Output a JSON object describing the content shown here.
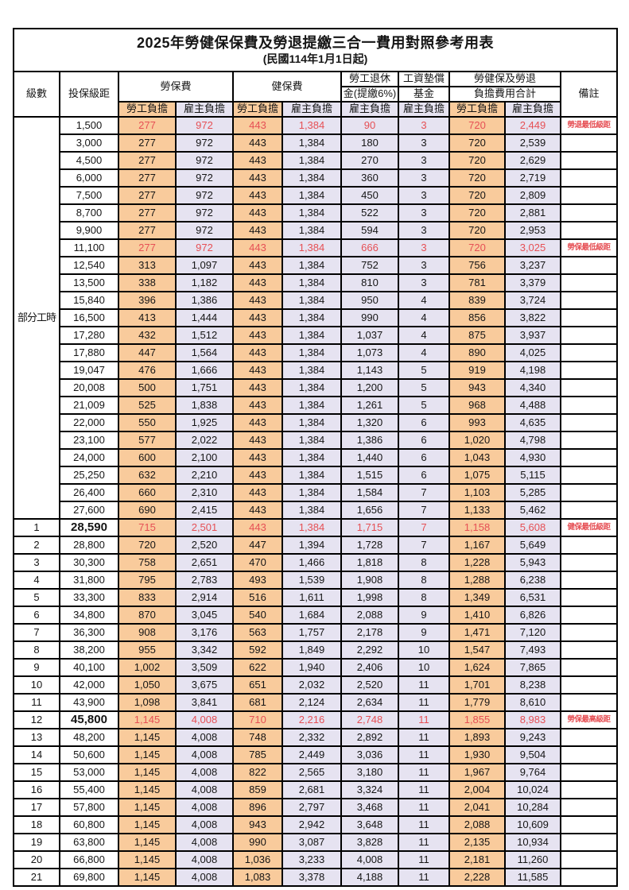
{
  "title": "2025年勞健保保費及勞退提繳三合一費用對照參考用表",
  "subtitle": "(民國114年1月1日起)",
  "columns": {
    "level": "級數",
    "bracket": "投保級距",
    "labor": "勞保費",
    "health": "健保費",
    "pension_line1": "勞工退休",
    "pension_line2": "金(提繳6%)",
    "wage_fund_line1": "工資墊償",
    "wage_fund_line2": "基金",
    "total_line1": "勞健保及勞退",
    "total_line2": "負擔費用合計",
    "employee": "勞工負擔",
    "employer": "雇主負擔",
    "note": "備註"
  },
  "colors": {
    "employee_bg": "#F9CB9C",
    "employer_bg": "#E6E3F1",
    "highlight_red": "#E65055",
    "border": "#000000"
  },
  "part_time_label": "部分工時",
  "part_time_span": 23,
  "rows": [
    {
      "level": "",
      "bracket": "1,500",
      "values": [
        "277",
        "972",
        "443",
        "1,384",
        "90",
        "3",
        "720",
        "2,449"
      ],
      "note": "勞退最低級距",
      "red": true,
      "bold": false
    },
    {
      "level": "",
      "bracket": "3,000",
      "values": [
        "277",
        "972",
        "443",
        "1,384",
        "180",
        "3",
        "720",
        "2,539"
      ],
      "note": "",
      "red": false,
      "bold": false
    },
    {
      "level": "",
      "bracket": "4,500",
      "values": [
        "277",
        "972",
        "443",
        "1,384",
        "270",
        "3",
        "720",
        "2,629"
      ],
      "note": "",
      "red": false,
      "bold": false
    },
    {
      "level": "",
      "bracket": "6,000",
      "values": [
        "277",
        "972",
        "443",
        "1,384",
        "360",
        "3",
        "720",
        "2,719"
      ],
      "note": "",
      "red": false,
      "bold": false
    },
    {
      "level": "",
      "bracket": "7,500",
      "values": [
        "277",
        "972",
        "443",
        "1,384",
        "450",
        "3",
        "720",
        "2,809"
      ],
      "note": "",
      "red": false,
      "bold": false
    },
    {
      "level": "",
      "bracket": "8,700",
      "values": [
        "277",
        "972",
        "443",
        "1,384",
        "522",
        "3",
        "720",
        "2,881"
      ],
      "note": "",
      "red": false,
      "bold": false
    },
    {
      "level": "",
      "bracket": "9,900",
      "values": [
        "277",
        "972",
        "443",
        "1,384",
        "594",
        "3",
        "720",
        "2,953"
      ],
      "note": "",
      "red": false,
      "bold": false
    },
    {
      "level": "",
      "bracket": "11,100",
      "values": [
        "277",
        "972",
        "443",
        "1,384",
        "666",
        "3",
        "720",
        "3,025"
      ],
      "note": "勞保最低級距",
      "red": true,
      "bold": false
    },
    {
      "level": "",
      "bracket": "12,540",
      "values": [
        "313",
        "1,097",
        "443",
        "1,384",
        "752",
        "3",
        "756",
        "3,237"
      ],
      "note": "",
      "red": false,
      "bold": false
    },
    {
      "level": "",
      "bracket": "13,500",
      "values": [
        "338",
        "1,182",
        "443",
        "1,384",
        "810",
        "3",
        "781",
        "3,379"
      ],
      "note": "",
      "red": false,
      "bold": false
    },
    {
      "level": "",
      "bracket": "15,840",
      "values": [
        "396",
        "1,386",
        "443",
        "1,384",
        "950",
        "4",
        "839",
        "3,724"
      ],
      "note": "",
      "red": false,
      "bold": false
    },
    {
      "level": "",
      "bracket": "16,500",
      "values": [
        "413",
        "1,444",
        "443",
        "1,384",
        "990",
        "4",
        "856",
        "3,822"
      ],
      "note": "",
      "red": false,
      "bold": false
    },
    {
      "level": "",
      "bracket": "17,280",
      "values": [
        "432",
        "1,512",
        "443",
        "1,384",
        "1,037",
        "4",
        "875",
        "3,937"
      ],
      "note": "",
      "red": false,
      "bold": false
    },
    {
      "level": "",
      "bracket": "17,880",
      "values": [
        "447",
        "1,564",
        "443",
        "1,384",
        "1,073",
        "4",
        "890",
        "4,025"
      ],
      "note": "",
      "red": false,
      "bold": false
    },
    {
      "level": "",
      "bracket": "19,047",
      "values": [
        "476",
        "1,666",
        "443",
        "1,384",
        "1,143",
        "5",
        "919",
        "4,198"
      ],
      "note": "",
      "red": false,
      "bold": false
    },
    {
      "level": "",
      "bracket": "20,008",
      "values": [
        "500",
        "1,751",
        "443",
        "1,384",
        "1,200",
        "5",
        "943",
        "4,340"
      ],
      "note": "",
      "red": false,
      "bold": false
    },
    {
      "level": "",
      "bracket": "21,009",
      "values": [
        "525",
        "1,838",
        "443",
        "1,384",
        "1,261",
        "5",
        "968",
        "4,488"
      ],
      "note": "",
      "red": false,
      "bold": false
    },
    {
      "level": "",
      "bracket": "22,000",
      "values": [
        "550",
        "1,925",
        "443",
        "1,384",
        "1,320",
        "6",
        "993",
        "4,635"
      ],
      "note": "",
      "red": false,
      "bold": false
    },
    {
      "level": "",
      "bracket": "23,100",
      "values": [
        "577",
        "2,022",
        "443",
        "1,384",
        "1,386",
        "6",
        "1,020",
        "4,798"
      ],
      "note": "",
      "red": false,
      "bold": false
    },
    {
      "level": "",
      "bracket": "24,000",
      "values": [
        "600",
        "2,100",
        "443",
        "1,384",
        "1,440",
        "6",
        "1,043",
        "4,930"
      ],
      "note": "",
      "red": false,
      "bold": false
    },
    {
      "level": "",
      "bracket": "25,250",
      "values": [
        "632",
        "2,210",
        "443",
        "1,384",
        "1,515",
        "6",
        "1,075",
        "5,115"
      ],
      "note": "",
      "red": false,
      "bold": false
    },
    {
      "level": "",
      "bracket": "26,400",
      "values": [
        "660",
        "2,310",
        "443",
        "1,384",
        "1,584",
        "7",
        "1,103",
        "5,285"
      ],
      "note": "",
      "red": false,
      "bold": false
    },
    {
      "level": "",
      "bracket": "27,600",
      "values": [
        "690",
        "2,415",
        "443",
        "1,384",
        "1,656",
        "7",
        "1,133",
        "5,462"
      ],
      "note": "",
      "red": false,
      "bold": false
    },
    {
      "level": "1",
      "bracket": "28,590",
      "values": [
        "715",
        "2,501",
        "443",
        "1,384",
        "1,715",
        "7",
        "1,158",
        "5,608"
      ],
      "note": "健保最低級距",
      "red": true,
      "bold": true
    },
    {
      "level": "2",
      "bracket": "28,800",
      "values": [
        "720",
        "2,520",
        "447",
        "1,394",
        "1,728",
        "7",
        "1,167",
        "5,649"
      ],
      "note": "",
      "red": false,
      "bold": false
    },
    {
      "level": "3",
      "bracket": "30,300",
      "values": [
        "758",
        "2,651",
        "470",
        "1,466",
        "1,818",
        "8",
        "1,228",
        "5,943"
      ],
      "note": "",
      "red": false,
      "bold": false
    },
    {
      "level": "4",
      "bracket": "31,800",
      "values": [
        "795",
        "2,783",
        "493",
        "1,539",
        "1,908",
        "8",
        "1,288",
        "6,238"
      ],
      "note": "",
      "red": false,
      "bold": false
    },
    {
      "level": "5",
      "bracket": "33,300",
      "values": [
        "833",
        "2,914",
        "516",
        "1,611",
        "1,998",
        "8",
        "1,349",
        "6,531"
      ],
      "note": "",
      "red": false,
      "bold": false
    },
    {
      "level": "6",
      "bracket": "34,800",
      "values": [
        "870",
        "3,045",
        "540",
        "1,684",
        "2,088",
        "9",
        "1,410",
        "6,826"
      ],
      "note": "",
      "red": false,
      "bold": false
    },
    {
      "level": "7",
      "bracket": "36,300",
      "values": [
        "908",
        "3,176",
        "563",
        "1,757",
        "2,178",
        "9",
        "1,471",
        "7,120"
      ],
      "note": "",
      "red": false,
      "bold": false
    },
    {
      "level": "8",
      "bracket": "38,200",
      "values": [
        "955",
        "3,342",
        "592",
        "1,849",
        "2,292",
        "10",
        "1,547",
        "7,493"
      ],
      "note": "",
      "red": false,
      "bold": false
    },
    {
      "level": "9",
      "bracket": "40,100",
      "values": [
        "1,002",
        "3,509",
        "622",
        "1,940",
        "2,406",
        "10",
        "1,624",
        "7,865"
      ],
      "note": "",
      "red": false,
      "bold": false
    },
    {
      "level": "10",
      "bracket": "42,000",
      "values": [
        "1,050",
        "3,675",
        "651",
        "2,032",
        "2,520",
        "11",
        "1,701",
        "8,238"
      ],
      "note": "",
      "red": false,
      "bold": false
    },
    {
      "level": "11",
      "bracket": "43,900",
      "values": [
        "1,098",
        "3,841",
        "681",
        "2,124",
        "2,634",
        "11",
        "1,779",
        "8,610"
      ],
      "note": "",
      "red": false,
      "bold": false
    },
    {
      "level": "12",
      "bracket": "45,800",
      "values": [
        "1,145",
        "4,008",
        "710",
        "2,216",
        "2,748",
        "11",
        "1,855",
        "8,983"
      ],
      "note": "勞保最高級距",
      "red": true,
      "bold": true
    },
    {
      "level": "13",
      "bracket": "48,200",
      "values": [
        "1,145",
        "4,008",
        "748",
        "2,332",
        "2,892",
        "11",
        "1,893",
        "9,243"
      ],
      "note": "",
      "red": false,
      "bold": false
    },
    {
      "level": "14",
      "bracket": "50,600",
      "values": [
        "1,145",
        "4,008",
        "785",
        "2,449",
        "3,036",
        "11",
        "1,930",
        "9,504"
      ],
      "note": "",
      "red": false,
      "bold": false
    },
    {
      "level": "15",
      "bracket": "53,000",
      "values": [
        "1,145",
        "4,008",
        "822",
        "2,565",
        "3,180",
        "11",
        "1,967",
        "9,764"
      ],
      "note": "",
      "red": false,
      "bold": false
    },
    {
      "level": "16",
      "bracket": "55,400",
      "values": [
        "1,145",
        "4,008",
        "859",
        "2,681",
        "3,324",
        "11",
        "2,004",
        "10,024"
      ],
      "note": "",
      "red": false,
      "bold": false
    },
    {
      "level": "17",
      "bracket": "57,800",
      "values": [
        "1,145",
        "4,008",
        "896",
        "2,797",
        "3,468",
        "11",
        "2,041",
        "10,284"
      ],
      "note": "",
      "red": false,
      "bold": false
    },
    {
      "level": "18",
      "bracket": "60,800",
      "values": [
        "1,145",
        "4,008",
        "943",
        "2,942",
        "3,648",
        "11",
        "2,088",
        "10,609"
      ],
      "note": "",
      "red": false,
      "bold": false
    },
    {
      "level": "19",
      "bracket": "63,800",
      "values": [
        "1,145",
        "4,008",
        "990",
        "3,087",
        "3,828",
        "11",
        "2,135",
        "10,934"
      ],
      "note": "",
      "red": false,
      "bold": false
    },
    {
      "level": "20",
      "bracket": "66,800",
      "values": [
        "1,145",
        "4,008",
        "1,036",
        "3,233",
        "4,008",
        "11",
        "2,181",
        "11,260"
      ],
      "note": "",
      "red": false,
      "bold": false
    },
    {
      "level": "21",
      "bracket": "69,800",
      "values": [
        "1,145",
        "4,008",
        "1,083",
        "3,378",
        "4,188",
        "11",
        "2,228",
        "11,585"
      ],
      "note": "",
      "red": false,
      "bold": false
    }
  ]
}
